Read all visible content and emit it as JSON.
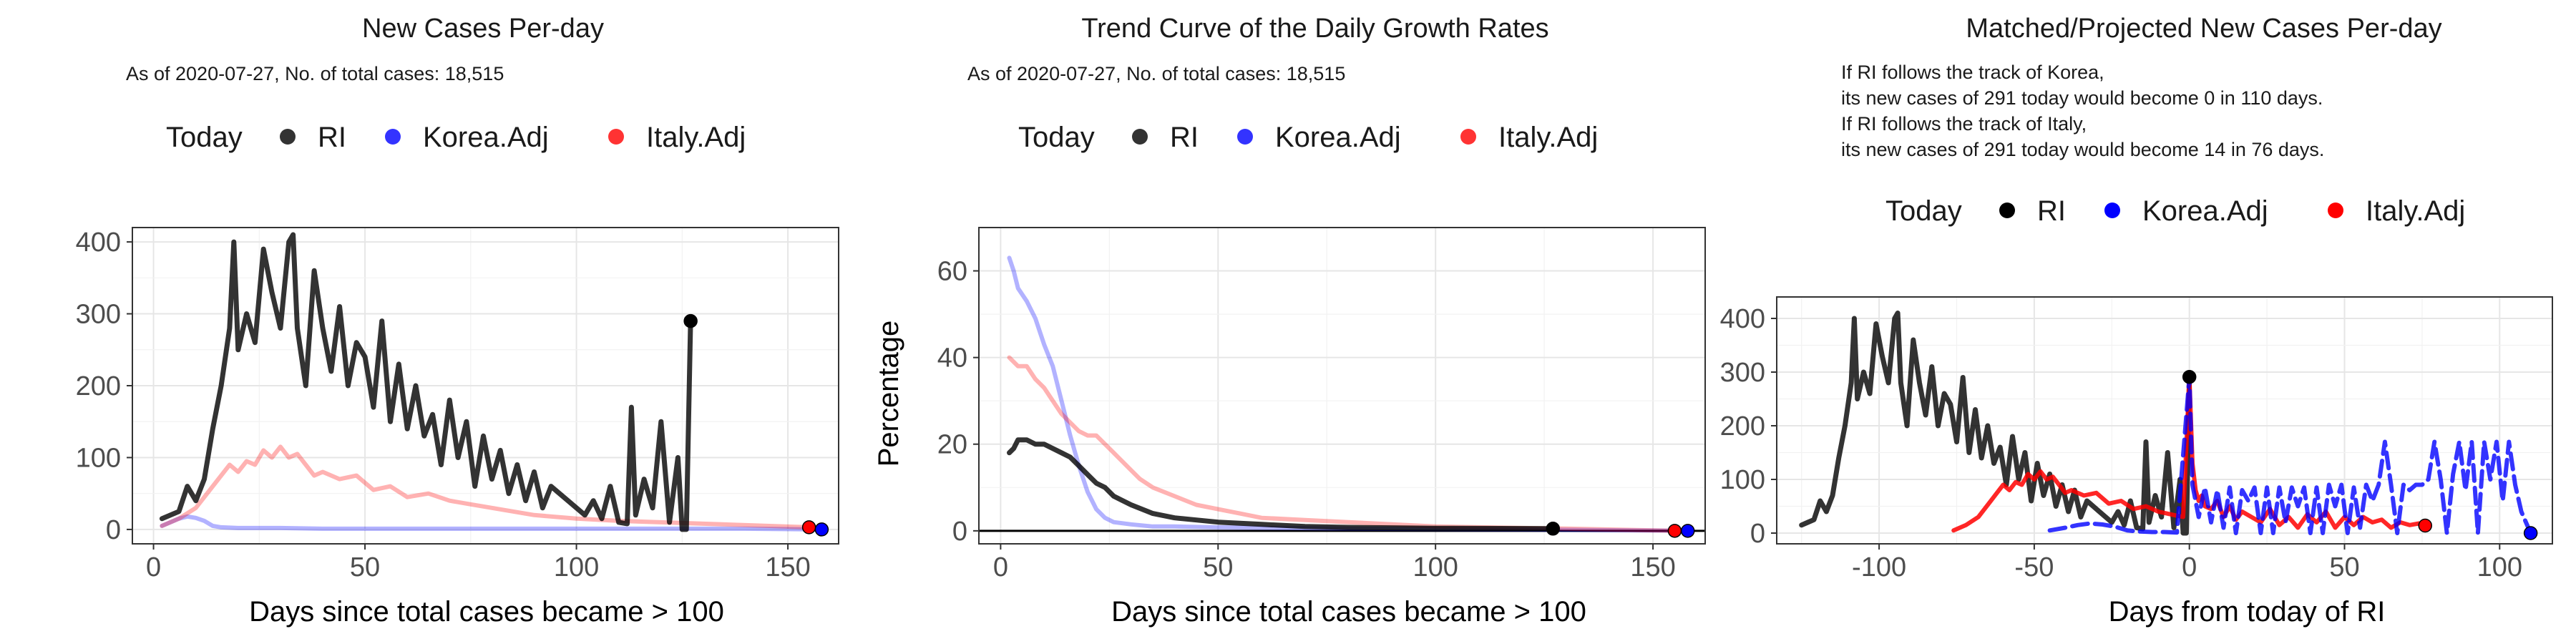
{
  "colors": {
    "RI": "#000000",
    "Korea.Adj": "#0000ff",
    "Italy.Adj": "#ff0000"
  },
  "legend_labels": {
    "today": "Today",
    "RI": "RI",
    "korea": "Korea.Adj",
    "italy": "Italy.Adj"
  },
  "chart_data": [
    {
      "type": "line",
      "title": "New Cases Per-day",
      "subtitle": "As of 2020-07-27, No. of total cases: 18,515",
      "xlabel": "Days since total cases became > 100",
      "ylabel": "",
      "xlim": [
        -5,
        162
      ],
      "ylim": [
        -20,
        420
      ],
      "xticks": [
        0,
        50,
        100,
        150
      ],
      "yticks": [
        0,
        100,
        200,
        300,
        400
      ],
      "grid": true,
      "legend": "top",
      "series": [
        {
          "name": "RI",
          "x": [
            2,
            4,
            6,
            8,
            10,
            12,
            14,
            16,
            18,
            19,
            20,
            22,
            24,
            26,
            28,
            30,
            32,
            33,
            34,
            36,
            38,
            40,
            42,
            44,
            46,
            48,
            50,
            52,
            54,
            56,
            58,
            60,
            62,
            64,
            66,
            68,
            70,
            72,
            74,
            76,
            78,
            80,
            82,
            84,
            86,
            88,
            90,
            92,
            94,
            96,
            98,
            100,
            102,
            104,
            106,
            108,
            110,
            112,
            113,
            114,
            116,
            118,
            120,
            122,
            124,
            125,
            126,
            127
          ],
          "y": [
            15,
            20,
            25,
            60,
            40,
            70,
            140,
            200,
            280,
            400,
            250,
            300,
            260,
            390,
            330,
            280,
            400,
            410,
            280,
            200,
            360,
            280,
            220,
            310,
            200,
            260,
            240,
            170,
            290,
            150,
            230,
            140,
            200,
            130,
            160,
            90,
            180,
            100,
            150,
            60,
            130,
            70,
            110,
            50,
            90,
            40,
            80,
            30,
            60,
            50,
            40,
            30,
            20,
            40,
            15,
            60,
            10,
            8,
            170,
            20,
            70,
            30,
            150,
            10,
            100,
            0,
            0,
            290
          ]
        },
        {
          "name": "Korea.Adj",
          "x": [
            2,
            4,
            6,
            8,
            10,
            12,
            14,
            16,
            20,
            30,
            40,
            60,
            80,
            100,
            120,
            140,
            158
          ],
          "y": [
            5,
            10,
            15,
            18,
            16,
            12,
            5,
            3,
            2,
            2,
            1,
            1,
            1,
            1,
            1,
            1,
            0
          ]
        },
        {
          "name": "Italy.Adj",
          "x": [
            2,
            6,
            10,
            14,
            18,
            20,
            22,
            24,
            26,
            28,
            30,
            32,
            34,
            36,
            38,
            40,
            44,
            48,
            52,
            56,
            60,
            65,
            70,
            75,
            80,
            90,
            100,
            110,
            120,
            130,
            140,
            150,
            155
          ],
          "y": [
            5,
            15,
            30,
            60,
            90,
            80,
            95,
            90,
            110,
            100,
            115,
            100,
            105,
            90,
            75,
            80,
            70,
            75,
            55,
            60,
            45,
            50,
            40,
            35,
            30,
            20,
            15,
            12,
            10,
            8,
            6,
            4,
            3
          ]
        }
      ],
      "today_points": [
        {
          "series": "RI",
          "x": 127,
          "y": 290
        },
        {
          "series": "Italy.Adj",
          "x": 155,
          "y": 3
        },
        {
          "series": "Korea.Adj",
          "x": 158,
          "y": 0
        }
      ]
    },
    {
      "type": "line",
      "title": "Trend Curve of the Daily Growth Rates",
      "subtitle": "As of 2020-07-27, No. of total cases: 18,515",
      "xlabel": "Days since total cases became > 100",
      "ylabel": "Percentage",
      "xlim": [
        -5,
        162
      ],
      "ylim": [
        -3,
        70
      ],
      "xticks": [
        0,
        50,
        100,
        150
      ],
      "yticks": [
        0,
        20,
        40,
        60
      ],
      "grid": true,
      "legend": "top",
      "zero_line": true,
      "series": [
        {
          "name": "RI",
          "x": [
            2,
            3,
            4,
            6,
            8,
            10,
            12,
            14,
            16,
            18,
            20,
            22,
            24,
            26,
            28,
            30,
            35,
            40,
            45,
            50,
            60,
            70,
            80,
            100,
            127
          ],
          "y": [
            18,
            19,
            21,
            21,
            20,
            20,
            19,
            18,
            17,
            15,
            13,
            11,
            10,
            8,
            7,
            6,
            4,
            3,
            2.5,
            2,
            1.5,
            1,
            0.8,
            0.6,
            0.5
          ]
        },
        {
          "name": "Korea.Adj",
          "x": [
            2,
            3,
            4,
            6,
            8,
            10,
            12,
            14,
            16,
            18,
            20,
            22,
            24,
            26,
            30,
            35,
            40,
            50,
            80,
            120,
            158
          ],
          "y": [
            63,
            60,
            56,
            53,
            49,
            43,
            38,
            30,
            22,
            15,
            9,
            5,
            3,
            2,
            1.5,
            1,
            1,
            0.8,
            0.5,
            0.3,
            0
          ]
        },
        {
          "name": "Italy.Adj",
          "x": [
            2,
            4,
            6,
            8,
            10,
            12,
            14,
            16,
            18,
            20,
            22,
            24,
            26,
            28,
            30,
            32,
            35,
            40,
            45,
            50,
            55,
            60,
            70,
            80,
            100,
            130,
            155
          ],
          "y": [
            40,
            38,
            38,
            35,
            33,
            30,
            27,
            25,
            23,
            22,
            22,
            20,
            18,
            16,
            14,
            12,
            10,
            8,
            6,
            5,
            4,
            3,
            2.5,
            2,
            1,
            0.5,
            0
          ]
        }
      ],
      "today_points": [
        {
          "series": "RI",
          "x": 127,
          "y": 0.5
        },
        {
          "series": "Italy.Adj",
          "x": 155,
          "y": 0
        },
        {
          "series": "Korea.Adj",
          "x": 158,
          "y": 0
        }
      ]
    },
    {
      "type": "line",
      "title": "Matched/Projected New Cases Per-day",
      "subtitle_lines": [
        "If RI follows the track of Korea,",
        "its new cases of 291 today would become 0 in 110 days.",
        "If RI follows the track of Italy,",
        "its new cases of 291 today would become 14 in 76 days."
      ],
      "xlabel": "Days from today of RI",
      "ylabel": "",
      "xlim": [
        -133,
        117
      ],
      "ylim": [
        -20,
        440
      ],
      "xticks": [
        -100,
        -50,
        0,
        50,
        100
      ],
      "yticks": [
        0,
        100,
        200,
        300,
        400
      ],
      "grid": true,
      "legend": "top",
      "series": [
        {
          "name": "RI",
          "x": [
            -125,
            -123,
            -121,
            -119,
            -117,
            -115,
            -113,
            -111,
            -109,
            -108,
            -107,
            -105,
            -103,
            -101,
            -99,
            -97,
            -95,
            -94,
            -93,
            -91,
            -89,
            -87,
            -85,
            -83,
            -81,
            -79,
            -77,
            -75,
            -73,
            -71,
            -69,
            -67,
            -65,
            -63,
            -61,
            -59,
            -57,
            -55,
            -53,
            -51,
            -49,
            -47,
            -45,
            -43,
            -41,
            -39,
            -37,
            -35,
            -33,
            -31,
            -29,
            -27,
            -25,
            -23,
            -21,
            -19,
            -17,
            -15,
            -14,
            -13,
            -11,
            -9,
            -7,
            -5,
            -3,
            -2,
            -1,
            0
          ],
          "y": [
            15,
            20,
            25,
            60,
            40,
            70,
            140,
            200,
            280,
            400,
            250,
            300,
            260,
            390,
            330,
            280,
            400,
            410,
            280,
            200,
            360,
            280,
            220,
            310,
            200,
            260,
            240,
            170,
            290,
            150,
            230,
            140,
            200,
            130,
            160,
            90,
            180,
            100,
            150,
            60,
            130,
            70,
            110,
            50,
            90,
            40,
            80,
            30,
            60,
            50,
            40,
            30,
            20,
            40,
            15,
            60,
            10,
            8,
            170,
            20,
            70,
            30,
            150,
            10,
            100,
            0,
            0,
            290
          ]
        },
        {
          "name": "Korea.Adj",
          "x": [
            -45,
            -40,
            -36,
            -32,
            -28,
            -24,
            -20,
            -16,
            -12,
            -8,
            -4,
            0,
            1,
            3,
            5,
            7,
            9,
            11,
            13,
            15,
            17,
            19,
            21,
            23,
            25,
            27,
            29,
            31,
            33,
            35,
            37,
            39,
            41,
            43,
            45,
            47,
            49,
            51,
            53,
            55,
            57,
            59,
            61,
            63,
            65,
            67,
            69,
            71,
            73,
            75,
            77,
            79,
            81,
            83,
            85,
            87,
            89,
            91,
            93,
            95,
            97,
            99,
            101,
            103,
            105,
            107,
            110
          ],
          "y": [
            5,
            10,
            15,
            18,
            16,
            12,
            5,
            3,
            2,
            2,
            1,
            290,
            90,
            30,
            85,
            20,
            80,
            10,
            85,
            0,
            80,
            60,
            85,
            0,
            85,
            0,
            85,
            20,
            85,
            50,
            85,
            0,
            85,
            0,
            90,
            50,
            90,
            0,
            85,
            10,
            90,
            60,
            90,
            170,
            90,
            0,
            90,
            80,
            90,
            90,
            100,
            170,
            100,
            0,
            110,
            170,
            80,
            170,
            0,
            170,
            100,
            170,
            60,
            170,
            90,
            40,
            0
          ]
        },
        {
          "name": "Italy.Adj",
          "x": [
            -76,
            -72,
            -68,
            -64,
            -60,
            -58,
            -56,
            -54,
            -52,
            -50,
            -48,
            -46,
            -44,
            -42,
            -40,
            -38,
            -34,
            -30,
            -26,
            -22,
            -18,
            -14,
            -10,
            -6,
            -2,
            0,
            1,
            2,
            3,
            4,
            5,
            7,
            9,
            11,
            13,
            15,
            17,
            20,
            23,
            26,
            29,
            32,
            35,
            38,
            41,
            44,
            47,
            50,
            53,
            56,
            59,
            62,
            65,
            68,
            71,
            74,
            76
          ],
          "y": [
            5,
            15,
            30,
            60,
            90,
            80,
            95,
            90,
            110,
            100,
            115,
            100,
            105,
            90,
            75,
            80,
            70,
            75,
            55,
            60,
            45,
            50,
            40,
            35,
            30,
            290,
            130,
            80,
            60,
            70,
            50,
            45,
            60,
            30,
            50,
            25,
            40,
            30,
            20,
            45,
            15,
            30,
            10,
            35,
            20,
            40,
            10,
            30,
            15,
            30,
            20,
            25,
            10,
            20,
            15,
            18,
            14
          ]
        }
      ],
      "today_points": [
        {
          "series": "RI",
          "x": 0,
          "y": 291
        },
        {
          "series": "Italy.Adj",
          "x": 76,
          "y": 14
        },
        {
          "series": "Korea.Adj",
          "x": 110,
          "y": 0
        }
      ]
    }
  ]
}
